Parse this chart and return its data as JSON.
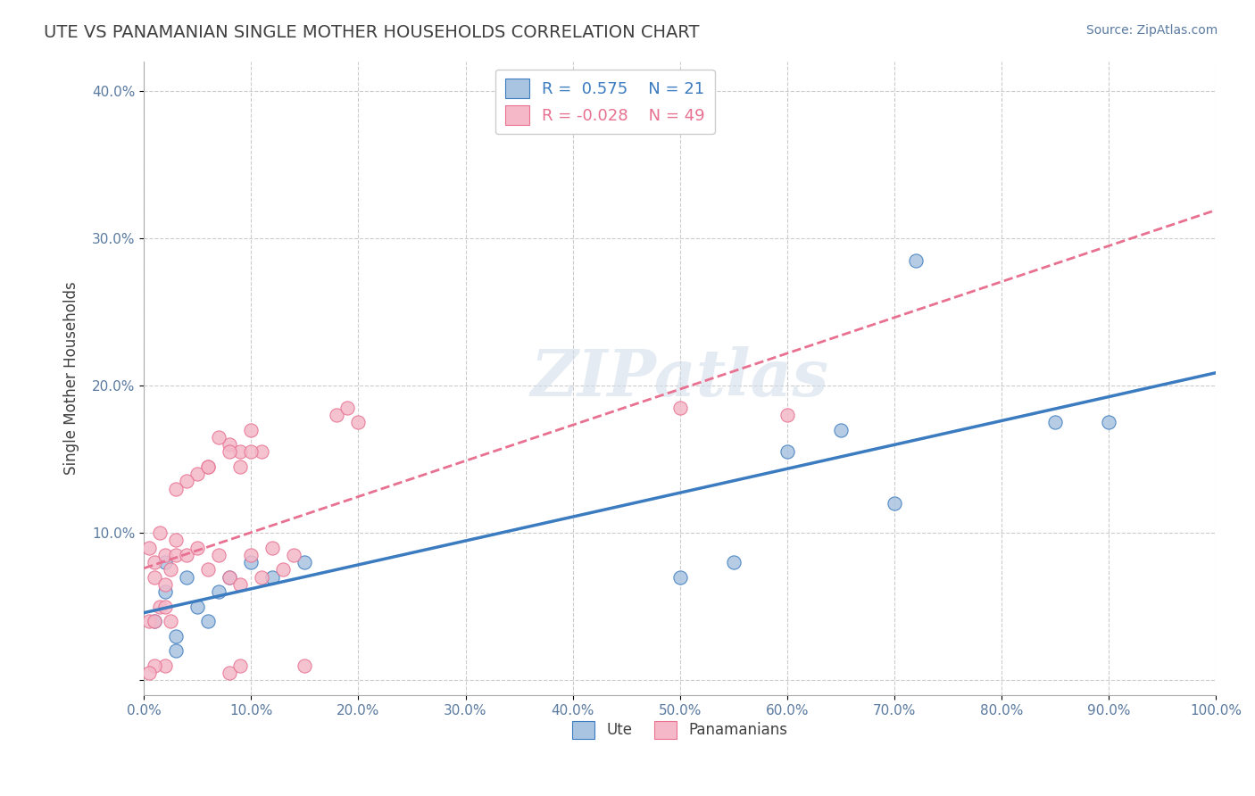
{
  "title": "UTE VS PANAMANIAN SINGLE MOTHER HOUSEHOLDS CORRELATION CHART",
  "source_text": "Source: ZipAtlas.com",
  "xlabel": "",
  "ylabel": "Single Mother Households",
  "xlim": [
    0,
    1.0
  ],
  "ylim": [
    -0.01,
    0.42
  ],
  "xticks": [
    0.0,
    0.1,
    0.2,
    0.3,
    0.4,
    0.5,
    0.6,
    0.7,
    0.8,
    0.9,
    1.0
  ],
  "yticks": [
    0.0,
    0.1,
    0.2,
    0.3,
    0.4
  ],
  "xticklabels": [
    "0.0%",
    "10.0%",
    "20.0%",
    "30.0%",
    "40.0%",
    "50.0%",
    "60.0%",
    "70.0%",
    "80.0%",
    "90.0%",
    "100.0%"
  ],
  "yticklabels": [
    "",
    "10.0%",
    "20.0%",
    "30.0%",
    "40.0%"
  ],
  "ute_R": 0.575,
  "ute_N": 21,
  "pan_R": -0.028,
  "pan_N": 49,
  "ute_scatter_x": [
    0.01,
    0.02,
    0.03,
    0.04,
    0.02,
    0.05,
    0.06,
    0.03,
    0.07,
    0.08,
    0.1,
    0.12,
    0.15,
    0.5,
    0.55,
    0.6,
    0.65,
    0.7,
    0.72,
    0.85,
    0.9
  ],
  "ute_scatter_y": [
    0.04,
    0.06,
    0.03,
    0.07,
    0.08,
    0.05,
    0.04,
    0.02,
    0.06,
    0.07,
    0.08,
    0.07,
    0.08,
    0.07,
    0.08,
    0.155,
    0.17,
    0.12,
    0.285,
    0.175,
    0.175
  ],
  "pan_scatter_x": [
    0.005,
    0.01,
    0.015,
    0.02,
    0.025,
    0.01,
    0.02,
    0.03,
    0.03,
    0.04,
    0.05,
    0.06,
    0.07,
    0.08,
    0.09,
    0.1,
    0.11,
    0.12,
    0.13,
    0.14,
    0.08,
    0.09,
    0.1,
    0.11,
    0.06,
    0.07,
    0.08,
    0.09,
    0.1,
    0.05,
    0.06,
    0.04,
    0.03,
    0.02,
    0.01,
    0.005,
    0.08,
    0.09,
    0.15,
    0.2,
    0.5,
    0.6,
    0.005,
    0.01,
    0.015,
    0.02,
    0.025,
    0.18,
    0.19
  ],
  "pan_scatter_y": [
    0.09,
    0.08,
    0.1,
    0.085,
    0.075,
    0.07,
    0.065,
    0.085,
    0.095,
    0.085,
    0.09,
    0.075,
    0.085,
    0.07,
    0.065,
    0.085,
    0.07,
    0.09,
    0.075,
    0.085,
    0.16,
    0.155,
    0.17,
    0.155,
    0.145,
    0.165,
    0.155,
    0.145,
    0.155,
    0.14,
    0.145,
    0.135,
    0.13,
    0.01,
    0.01,
    0.005,
    0.005,
    0.01,
    0.01,
    0.175,
    0.185,
    0.18,
    0.04,
    0.04,
    0.05,
    0.05,
    0.04,
    0.18,
    0.185
  ],
  "ute_color": "#a8c4e0",
  "pan_color": "#f4b8c8",
  "ute_line_color": "#3b7bbf",
  "pan_line_color": "#e87090",
  "background_color": "#ffffff",
  "grid_color": "#cccccc",
  "title_color": "#404040",
  "watermark_text": "ZIPatlas",
  "legend_label_ute": "Ute",
  "legend_label_pan": "Panamanians"
}
